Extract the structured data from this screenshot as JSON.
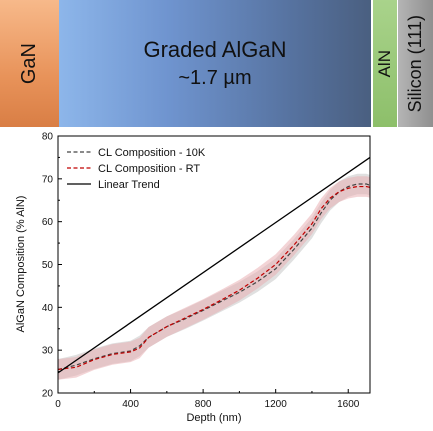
{
  "layers": {
    "gan": "GaN",
    "graded_title": "Graded AlGaN",
    "graded_thickness": "~1.7 µm",
    "aln": "AlN",
    "silicon": "Silicon (111)"
  },
  "colors": {
    "cl_10k": "#444444",
    "cl_rt": "#c00000",
    "rt_band": "#e8a9ae",
    "k10_band": "#c6c6c6",
    "trend": "#000000"
  },
  "chart_data": {
    "type": "line",
    "xlabel": "Depth (nm)",
    "ylabel": "AlGaN Composition (% AlN)",
    "xlim": [
      0,
      1720
    ],
    "ylim": [
      20,
      80
    ],
    "x_ticks": [
      0,
      400,
      800,
      1200,
      1600
    ],
    "y_ticks": [
      20,
      30,
      40,
      50,
      60,
      70,
      80
    ],
    "legend_position": "top-left",
    "series": [
      {
        "name": "CL Composition - 10K",
        "style": "dashed",
        "band": 2.4,
        "x": [
          0,
          100,
          200,
          300,
          400,
          450,
          500,
          600,
          700,
          800,
          900,
          1000,
          1100,
          1200,
          1300,
          1400,
          1450,
          1500,
          1550,
          1600,
          1650,
          1700,
          1720
        ],
        "y": [
          25.5,
          26.5,
          28.0,
          29.2,
          29.8,
          31.0,
          33.0,
          35.5,
          37.3,
          39.3,
          41.4,
          43.5,
          46.0,
          49.0,
          53.5,
          58.5,
          62.0,
          65.0,
          67.0,
          68.2,
          68.8,
          68.8,
          68.5
        ]
      },
      {
        "name": "CL Composition - RT",
        "style": "dashed",
        "band": 2.4,
        "x": [
          0,
          100,
          200,
          300,
          400,
          450,
          500,
          600,
          700,
          800,
          900,
          1000,
          1100,
          1200,
          1300,
          1400,
          1450,
          1500,
          1550,
          1600,
          1650,
          1700,
          1720
        ],
        "y": [
          25.5,
          26.0,
          27.8,
          29.0,
          29.6,
          30.5,
          33.0,
          35.5,
          37.5,
          39.5,
          41.7,
          44.0,
          46.8,
          50.0,
          54.5,
          59.5,
          63.0,
          65.5,
          67.0,
          67.8,
          68.2,
          68.2,
          68.0
        ]
      },
      {
        "name": "Linear Trend",
        "style": "solid",
        "x": [
          0,
          1720
        ],
        "y": [
          24.7,
          75.0
        ]
      }
    ]
  }
}
